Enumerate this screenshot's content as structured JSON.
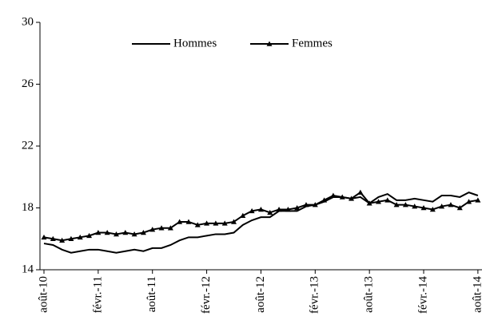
{
  "chart_data": {
    "type": "line",
    "categories": [
      "août-10",
      null,
      null,
      null,
      null,
      null,
      "févr.-11",
      null,
      null,
      null,
      null,
      null,
      "août-11",
      null,
      null,
      null,
      null,
      null,
      "févr.-12",
      null,
      null,
      null,
      null,
      null,
      "août-12",
      null,
      null,
      null,
      null,
      null,
      "févr.-13",
      null,
      null,
      null,
      null,
      null,
      "août-13",
      null,
      null,
      null,
      null,
      null,
      "févr.-14",
      null,
      null,
      null,
      null,
      null,
      "août-14"
    ],
    "series": [
      {
        "name": "Hommes",
        "color": "#000000",
        "marker": "none",
        "values": [
          15.7,
          15.6,
          15.3,
          15.1,
          15.2,
          15.3,
          15.3,
          15.2,
          15.1,
          15.2,
          15.3,
          15.2,
          15.4,
          15.4,
          15.6,
          15.9,
          16.1,
          16.1,
          16.2,
          16.3,
          16.3,
          16.4,
          16.9,
          17.2,
          17.4,
          17.4,
          17.8,
          17.8,
          17.8,
          18.1,
          18.2,
          18.4,
          18.7,
          18.7,
          18.6,
          18.7,
          18.3,
          18.7,
          18.9,
          18.5,
          18.5,
          18.6,
          18.5,
          18.4,
          18.8,
          18.8,
          18.7,
          19.0,
          18.8
        ]
      },
      {
        "name": "Femmes",
        "color": "#000000",
        "marker": "triangle",
        "values": [
          16.1,
          16.0,
          15.9,
          16.0,
          16.1,
          16.2,
          16.4,
          16.4,
          16.3,
          16.4,
          16.3,
          16.4,
          16.6,
          16.7,
          16.7,
          17.1,
          17.1,
          16.9,
          17.0,
          17.0,
          17.0,
          17.1,
          17.5,
          17.8,
          17.9,
          17.7,
          17.9,
          17.9,
          18.0,
          18.2,
          18.2,
          18.5,
          18.8,
          18.7,
          18.6,
          19.0,
          18.3,
          18.4,
          18.5,
          18.2,
          18.2,
          18.1,
          18.0,
          17.9,
          18.1,
          18.2,
          18.0,
          18.4,
          18.5
        ]
      }
    ],
    "ylim": [
      14,
      30
    ],
    "yticks": [
      14,
      18,
      22,
      26,
      30
    ],
    "grid": false,
    "legend": "top"
  }
}
